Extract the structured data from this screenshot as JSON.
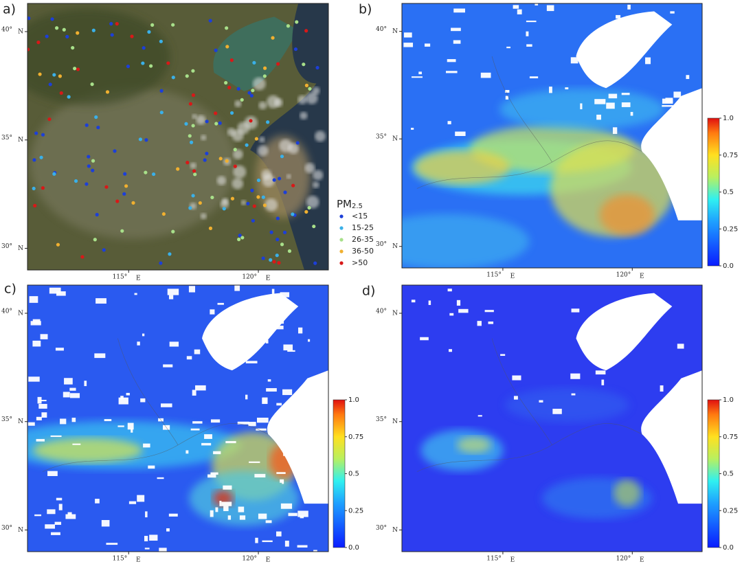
{
  "panels": [
    {
      "label": "a)",
      "has_colorbar": false
    },
    {
      "label": "b)",
      "has_colorbar": true
    },
    {
      "label": "c)",
      "has_colorbar": true
    },
    {
      "label": "d)",
      "has_colorbar": true
    }
  ],
  "latlim": [
    29.0,
    41.3
  ],
  "lonlim": [
    111.1,
    122.7
  ],
  "lat_ticks": [
    {
      "value": 40,
      "label": "40°"
    },
    {
      "value": 35,
      "label": "35°"
    },
    {
      "value": 30,
      "label": "30°"
    }
  ],
  "lat_hemisphere": "N",
  "lon_ticks": [
    {
      "value": 115,
      "label": "115°"
    },
    {
      "value": 120,
      "label": "120°"
    }
  ],
  "lon_hemisphere": "E",
  "legend": {
    "title": "PM",
    "title_sub": "2.5",
    "items": [
      {
        "label": "<15",
        "color": "#1c3fd8"
      },
      {
        "label": "15-25",
        "color": "#3ab0e8"
      },
      {
        "label": "26-35",
        "color": "#a8e08a"
      },
      {
        "label": "36-50",
        "color": "#f0b030"
      },
      {
        "label": ">50",
        "color": "#d81818"
      }
    ]
  },
  "colorbar": {
    "lim": [
      0,
      1
    ],
    "ticks": [
      {
        "value": 1,
        "label": "1.0"
      },
      0.75,
      0.5,
      0.25,
      {
        "value": 0,
        "label": "0.0"
      }
    ]
  }
}
